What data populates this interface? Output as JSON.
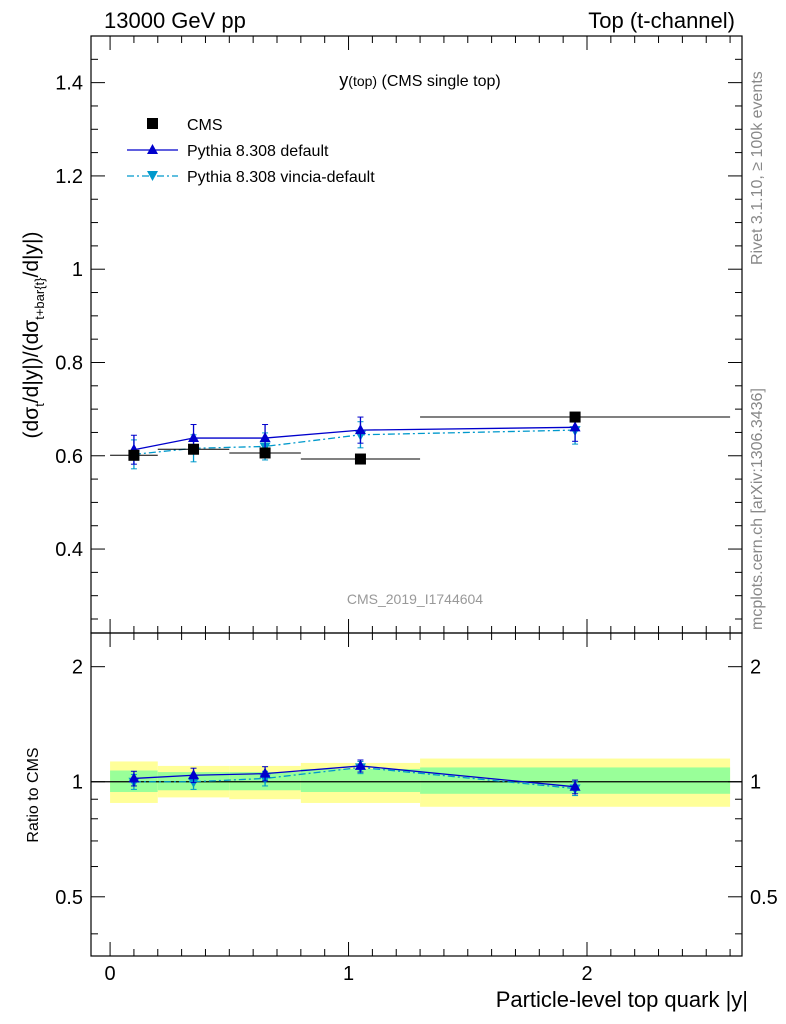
{
  "header": {
    "left": "13000 GeV pp",
    "right": "Top (t-channel)"
  },
  "side_labels": {
    "rivet": "Rivet 3.1.10, ≥ 100k events",
    "mcplots": "mcplots.cern.ch [arXiv:1306.3436]"
  },
  "chart_data": [
    {
      "type": "scatter",
      "panel": "main",
      "title_main": "y",
      "title_sub": "(top)",
      "title_rest": " (CMS single top)",
      "watermark": "CMS_2019_I1744604",
      "ylabel": "(dσt/d|y|)/(dσt+bar{t}/d|y|)",
      "ylabel_parts": {
        "a": "(dσ",
        "a_sub": "t",
        "b": "/d|y|)/(dσ",
        "b_sub": "t+bar{t}",
        "c": "/d|y|)"
      },
      "xlim": [
        -0.08,
        2.65
      ],
      "ylim": [
        0.22,
        1.5
      ],
      "yticks": [
        0.4,
        0.6,
        0.8,
        1,
        1.2,
        1.4
      ],
      "ytick_labels": [
        "0.4",
        "0.6",
        "0.8",
        "1",
        "1.2",
        "1.4"
      ],
      "legend_position": "top-left",
      "series": [
        {
          "name": "CMS",
          "color": "#000000",
          "marker": "square",
          "x": [
            0.1,
            0.35,
            0.65,
            1.05,
            1.95
          ],
          "y": [
            0.601,
            0.614,
            0.606,
            0.593,
            0.683
          ],
          "xerr": [
            0.1,
            0.15,
            0.15,
            0.25,
            0.65
          ]
        },
        {
          "name": "Pythia 8.308 default",
          "color": "#0000cc",
          "marker": "triangle-up",
          "line": "solid",
          "x": [
            0.1,
            0.35,
            0.65,
            1.05,
            1.95
          ],
          "y": [
            0.613,
            0.638,
            0.638,
            0.655,
            0.661
          ],
          "yerr": [
            0.031,
            0.029,
            0.029,
            0.028,
            0.03
          ]
        },
        {
          "name": "Pythia 8.308 vincia-default",
          "color": "#0099cc",
          "marker": "triangle-down",
          "line": "dashdot",
          "x": [
            0.1,
            0.35,
            0.65,
            1.05,
            1.95
          ],
          "y": [
            0.603,
            0.616,
            0.62,
            0.645,
            0.655
          ],
          "yerr": [
            0.031,
            0.029,
            0.029,
            0.028,
            0.03
          ]
        }
      ]
    },
    {
      "type": "line",
      "panel": "ratio",
      "ylabel": "Ratio to CMS",
      "xlabel": "Particle-level top quark |y|",
      "xlim": [
        -0.08,
        2.65
      ],
      "ylim": [
        0.35,
        2.45
      ],
      "yscale": "log",
      "yticks": [
        0.5,
        1,
        2
      ],
      "ytick_labels": [
        "0.5",
        "1",
        "2"
      ],
      "xticks": [
        0,
        1,
        2
      ],
      "xtick_labels": [
        "0",
        "1",
        "2"
      ],
      "bands": {
        "bins": [
          [
            0.0,
            0.2
          ],
          [
            0.2,
            0.5
          ],
          [
            0.5,
            0.8
          ],
          [
            0.8,
            1.3
          ],
          [
            1.3,
            2.6
          ]
        ],
        "inner": [
          [
            0.94,
            1.07
          ],
          [
            0.95,
            1.06
          ],
          [
            0.95,
            1.06
          ],
          [
            0.94,
            1.08
          ],
          [
            0.93,
            1.09
          ]
        ],
        "outer": [
          [
            0.88,
            1.13
          ],
          [
            0.91,
            1.1
          ],
          [
            0.9,
            1.1
          ],
          [
            0.88,
            1.12
          ],
          [
            0.86,
            1.15
          ]
        ],
        "inner_color": "#99ff99",
        "outer_color": "#ffff99"
      },
      "series": [
        {
          "name": "Pythia 8.308 default",
          "color": "#0000cc",
          "marker": "triangle-up",
          "line": "solid",
          "x": [
            0.1,
            0.35,
            0.65,
            1.05,
            1.95
          ],
          "y": [
            1.02,
            1.04,
            1.05,
            1.1,
            0.97
          ],
          "yerr": [
            0.045,
            0.045,
            0.045,
            0.04,
            0.04
          ]
        },
        {
          "name": "Pythia 8.308 vincia-default",
          "color": "#0099cc",
          "marker": "triangle-down",
          "line": "dashdot",
          "x": [
            0.1,
            0.35,
            0.65,
            1.05,
            1.95
          ],
          "y": [
            1.0,
            1.0,
            1.02,
            1.09,
            0.96
          ],
          "yerr": [
            0.045,
            0.045,
            0.045,
            0.04,
            0.04
          ]
        }
      ]
    }
  ]
}
